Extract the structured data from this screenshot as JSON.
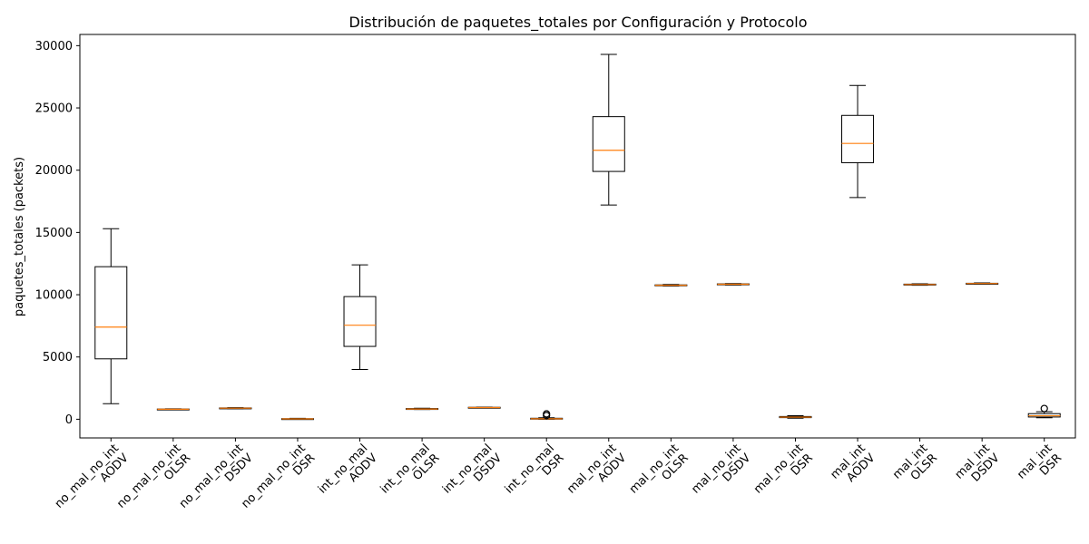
{
  "chart_data": {
    "type": "box",
    "title": "Distribución de paquetes_totales por Configuración y Protocolo",
    "xlabel": "",
    "ylabel": "paquetes_totales (packets)",
    "ylim": [
      -1500,
      30900
    ],
    "yticks": [
      0,
      5000,
      10000,
      15000,
      20000,
      25000,
      30000
    ],
    "ytick_labels": [
      "0",
      "5000",
      "10000",
      "15000",
      "20000",
      "25000",
      "30000"
    ],
    "grid": false,
    "colors": {
      "box": "#000000",
      "median": "#ff7f0e",
      "background": "#ffffff"
    },
    "boxes": [
      {
        "label_line1": "no_mal_no_int",
        "label_line2": "AODV",
        "whisker_low": 1250,
        "q1": 4850,
        "median": 7400,
        "q3": 12250,
        "whisker_high": 15300,
        "outliers": []
      },
      {
        "label_line1": "no_mal_no_int",
        "label_line2": "OLSR",
        "whisker_low": 760,
        "q1": 780,
        "median": 800,
        "q3": 820,
        "whisker_high": 840,
        "outliers": []
      },
      {
        "label_line1": "no_mal_no_int",
        "label_line2": "DSDV",
        "whisker_low": 850,
        "q1": 870,
        "median": 890,
        "q3": 910,
        "whisker_high": 930,
        "outliers": []
      },
      {
        "label_line1": "no_mal_no_int",
        "label_line2": "DSR",
        "whisker_low": 10,
        "q1": 20,
        "median": 30,
        "q3": 50,
        "whisker_high": 70,
        "outliers": []
      },
      {
        "label_line1": "int_no_mal",
        "label_line2": "AODV",
        "whisker_low": 4000,
        "q1": 5850,
        "median": 7550,
        "q3": 9850,
        "whisker_high": 12400,
        "outliers": []
      },
      {
        "label_line1": "int_no_mal",
        "label_line2": "OLSR",
        "whisker_low": 780,
        "q1": 800,
        "median": 820,
        "q3": 860,
        "whisker_high": 880,
        "outliers": []
      },
      {
        "label_line1": "int_no_mal",
        "label_line2": "DSDV",
        "whisker_low": 900,
        "q1": 920,
        "median": 940,
        "q3": 960,
        "whisker_high": 980,
        "outliers": []
      },
      {
        "label_line1": "int_no_mal",
        "label_line2": "DSR",
        "whisker_low": 0,
        "q1": 20,
        "median": 40,
        "q3": 80,
        "whisker_high": 120,
        "outliers": [
          300,
          430
        ]
      },
      {
        "label_line1": "mal_no_int",
        "label_line2": "AODV",
        "whisker_low": 17200,
        "q1": 19900,
        "median": 21600,
        "q3": 24300,
        "whisker_high": 29300,
        "outliers": []
      },
      {
        "label_line1": "mal_no_int",
        "label_line2": "OLSR",
        "whisker_low": 10700,
        "q1": 10730,
        "median": 10760,
        "q3": 10790,
        "whisker_high": 10820,
        "outliers": []
      },
      {
        "label_line1": "mal_no_int",
        "label_line2": "DSDV",
        "whisker_low": 10780,
        "q1": 10810,
        "median": 10840,
        "q3": 10870,
        "whisker_high": 10900,
        "outliers": []
      },
      {
        "label_line1": "mal_no_int",
        "label_line2": "DSR",
        "whisker_low": 80,
        "q1": 130,
        "median": 170,
        "q3": 220,
        "whisker_high": 280,
        "outliers": []
      },
      {
        "label_line1": "mal_int",
        "label_line2": "AODV",
        "whisker_low": 17800,
        "q1": 20600,
        "median": 22150,
        "q3": 24400,
        "whisker_high": 26800,
        "outliers": []
      },
      {
        "label_line1": "mal_int",
        "label_line2": "OLSR",
        "whisker_low": 10760,
        "q1": 10790,
        "median": 10820,
        "q3": 10850,
        "whisker_high": 10880,
        "outliers": []
      },
      {
        "label_line1": "mal_int",
        "label_line2": "DSDV",
        "whisker_low": 10860,
        "q1": 10880,
        "median": 10900,
        "q3": 10920,
        "whisker_high": 10950,
        "outliers": []
      },
      {
        "label_line1": "mal_int",
        "label_line2": "DSR",
        "whisker_low": 120,
        "q1": 180,
        "median": 280,
        "q3": 450,
        "whisker_high": 600,
        "outliers": [
          860
        ]
      }
    ]
  }
}
